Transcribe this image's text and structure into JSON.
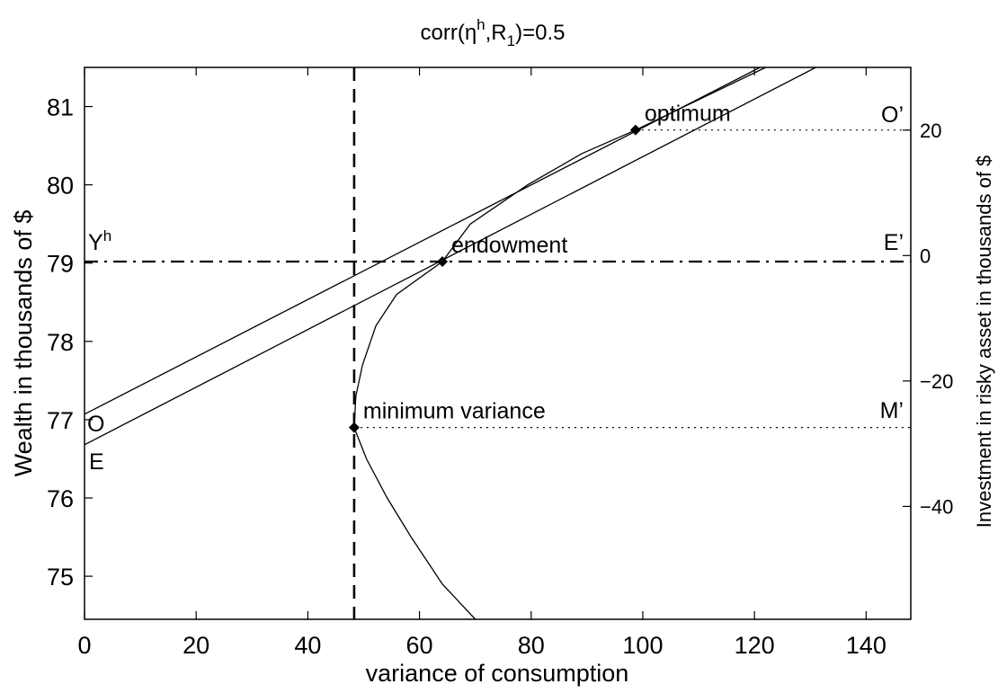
{
  "chart_data": {
    "type": "line",
    "title": "corr(η^h,R_1)=0.5",
    "title_parts": {
      "a": "corr(η",
      "sup": "h",
      "b": ",R",
      "sub": "1",
      "c": ")=0.5"
    },
    "xlabel": "variance of consumption",
    "ylabel": "Wealth in thousands of $",
    "y2label": "Investment in risky asset in thousands of $",
    "xlim": [
      0,
      148
    ],
    "ylim": [
      74.45,
      81.5
    ],
    "y2lim": [
      -58,
      30
    ],
    "x_ticks": [
      0,
      20,
      40,
      60,
      80,
      100,
      120,
      140
    ],
    "y_ticks": [
      75,
      76,
      77,
      78,
      79,
      80,
      81
    ],
    "y2_ticks": [
      -40,
      -20,
      0,
      20
    ],
    "grid": false,
    "legend": "none",
    "series": [
      {
        "style": "solid",
        "points": [
          [
            70,
            74.45
          ],
          [
            64.1,
            74.9
          ],
          [
            58.5,
            75.5
          ],
          [
            54.2,
            76.0
          ],
          [
            50.5,
            76.5
          ],
          [
            48.3,
            76.9
          ],
          [
            48.6,
            77.3
          ],
          [
            49.8,
            77.7
          ],
          [
            52.2,
            78.2
          ],
          [
            55.9,
            78.6
          ],
          [
            64.1,
            79.02
          ],
          [
            69.1,
            79.5
          ],
          [
            79.4,
            80.0
          ],
          [
            89.1,
            80.4
          ],
          [
            98.7,
            80.7
          ]
        ]
      },
      {
        "style": "solid",
        "points": [
          [
            0,
            76.68
          ],
          [
            131,
            81.5
          ]
        ]
      },
      {
        "style": "solid",
        "points": [
          [
            0,
            77.07
          ],
          [
            121,
            81.5
          ]
        ]
      },
      {
        "style": "solid",
        "points": [
          [
            98.7,
            80.7
          ],
          [
            122,
            81.5
          ]
        ]
      },
      {
        "style": "dashed-vertical",
        "x": 48.3
      },
      {
        "style": "dashdot-horizontal",
        "y": 79.02
      },
      {
        "style": "dotted",
        "points": [
          [
            48.3,
            76.9
          ],
          [
            148,
            76.9
          ]
        ]
      },
      {
        "style": "dotted",
        "points": [
          [
            98.7,
            80.7
          ],
          [
            148,
            80.7
          ]
        ]
      }
    ],
    "markers": [
      {
        "label": "optimum",
        "x": 98.7,
        "y": 80.7
      },
      {
        "label": "endowment",
        "x": 64.1,
        "y": 79.02
      },
      {
        "label": "minimum variance",
        "x": 48.3,
        "y": 76.9
      }
    ],
    "annotations": {
      "yh": "Y",
      "yh_sup": "h",
      "o_prime": "O’",
      "e_prime": "E’",
      "m_prime": "M’",
      "o": "O",
      "e": "E"
    }
  }
}
